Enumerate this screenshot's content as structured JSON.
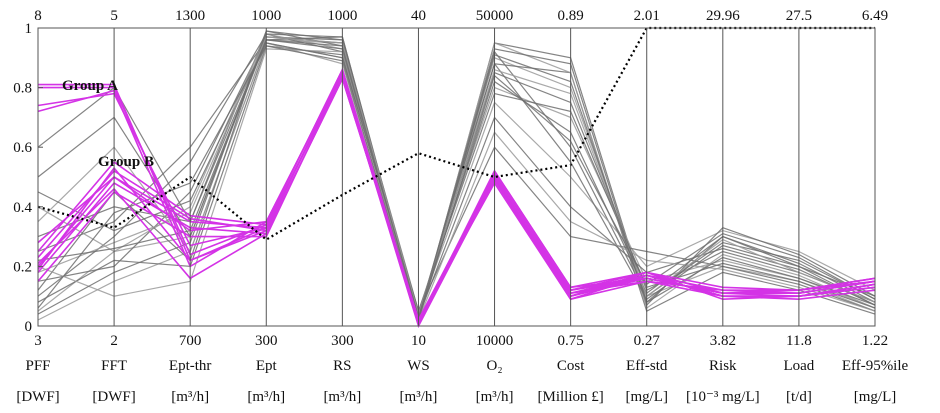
{
  "chart_data": {
    "type": "parallel-coordinates",
    "title": "",
    "y_tick_labels": [
      "0",
      "0.2",
      "0.4",
      "0.6",
      "0.8",
      "1"
    ],
    "ylim": [
      0,
      1
    ],
    "grid": false,
    "axes": [
      {
        "name": "PFF",
        "unit": "[DWF]",
        "min": "3",
        "max": "8"
      },
      {
        "name": "FFT",
        "unit": "[DWF]",
        "min": "2",
        "max": "5"
      },
      {
        "name": "Ept-thr",
        "unit": "[m³/h]",
        "min": "700",
        "max": "1300"
      },
      {
        "name": "Ept",
        "unit": "[m³/h]",
        "min": "300",
        "max": "1000"
      },
      {
        "name": "RS",
        "unit": "[m³/h]",
        "min": "300",
        "max": "1000"
      },
      {
        "name": "WS",
        "unit": "[m³/h]",
        "min": "10",
        "max": "40"
      },
      {
        "name": "O₂",
        "unit": "[m³/h]",
        "min": "10000",
        "max": "50000"
      },
      {
        "name": "Cost",
        "unit": "[Million £]",
        "min": "0.75",
        "max": "0.89"
      },
      {
        "name": "Eff-std",
        "unit": "[mg/L]",
        "min": "0.27",
        "max": "2.01"
      },
      {
        "name": "Risk",
        "unit": "[10⁻³ mg/L]",
        "min": "3.82",
        "max": "29.96"
      },
      {
        "name": "Load",
        "unit": "[t/d]",
        "min": "11.8",
        "max": "27.5"
      },
      {
        "name": "Eff-95%ile",
        "unit": "[mg/L]",
        "min": "1.22",
        "max": "6.49"
      }
    ],
    "annotations": [
      "Group A",
      "Group B"
    ],
    "colors": {
      "population": "#6f6f6f",
      "population_light": "#9a9a9a",
      "group": "#d433e6",
      "reference": "#000000",
      "axis": "#555555"
    },
    "series": [
      {
        "values": [
          0.4,
          0.33,
          0.5,
          0.29,
          0.44,
          0.58,
          0.5,
          0.54,
          1.0,
          1.0,
          1.0,
          1.0
        ]
      }
    ],
    "group_a": [
      [
        0.81,
        0.81,
        0.22,
        0.32,
        0.85,
        0.01,
        0.5,
        0.1,
        0.16,
        0.11,
        0.1,
        0.14
      ],
      [
        0.8,
        0.8,
        0.24,
        0.34,
        0.86,
        0.02,
        0.51,
        0.12,
        0.17,
        0.12,
        0.11,
        0.15
      ],
      [
        0.74,
        0.78,
        0.27,
        0.33,
        0.84,
        0.0,
        0.49,
        0.09,
        0.15,
        0.1,
        0.1,
        0.13
      ],
      [
        0.72,
        0.79,
        0.2,
        0.35,
        0.85,
        0.01,
        0.52,
        0.13,
        0.18,
        0.13,
        0.12,
        0.16
      ]
    ],
    "group_b": [
      [
        0.2,
        0.5,
        0.35,
        0.33,
        0.84,
        0.02,
        0.5,
        0.11,
        0.17,
        0.1,
        0.1,
        0.14
      ],
      [
        0.23,
        0.52,
        0.36,
        0.32,
        0.85,
        0.01,
        0.51,
        0.12,
        0.16,
        0.11,
        0.11,
        0.15
      ],
      [
        0.18,
        0.48,
        0.33,
        0.31,
        0.83,
        0.02,
        0.49,
        0.1,
        0.18,
        0.09,
        0.1,
        0.13
      ],
      [
        0.25,
        0.55,
        0.37,
        0.34,
        0.86,
        0.01,
        0.5,
        0.11,
        0.15,
        0.12,
        0.12,
        0.16
      ],
      [
        0.15,
        0.45,
        0.3,
        0.3,
        0.84,
        0.02,
        0.48,
        0.09,
        0.17,
        0.1,
        0.09,
        0.12
      ],
      [
        0.28,
        0.5,
        0.32,
        0.35,
        0.85,
        0.01,
        0.52,
        0.13,
        0.16,
        0.11,
        0.11,
        0.15
      ],
      [
        0.21,
        0.46,
        0.16,
        0.31,
        0.83,
        0.02,
        0.5,
        0.1,
        0.17,
        0.1,
        0.1,
        0.14
      ],
      [
        0.19,
        0.53,
        0.22,
        0.33,
        0.84,
        0.01,
        0.49,
        0.12,
        0.18,
        0.11,
        0.12,
        0.15
      ]
    ],
    "population": [
      [
        0.05,
        0.25,
        0.3,
        0.96,
        0.95,
        0.03,
        0.9,
        0.8,
        0.1,
        0.2,
        0.15,
        0.05
      ],
      [
        0.1,
        0.3,
        0.55,
        0.98,
        0.92,
        0.04,
        0.85,
        0.75,
        0.12,
        0.25,
        0.18,
        0.08
      ],
      [
        0.15,
        0.2,
        0.45,
        0.97,
        0.96,
        0.02,
        0.95,
        0.9,
        0.08,
        0.3,
        0.2,
        0.1
      ],
      [
        0.02,
        0.15,
        0.25,
        0.95,
        0.9,
        0.05,
        0.8,
        0.7,
        0.15,
        0.22,
        0.16,
        0.06
      ],
      [
        0.3,
        0.4,
        0.35,
        0.99,
        0.94,
        0.03,
        0.88,
        0.85,
        0.05,
        0.18,
        0.12,
        0.04
      ],
      [
        0.25,
        0.35,
        0.6,
        0.96,
        0.97,
        0.02,
        0.92,
        0.6,
        0.1,
        0.28,
        0.22,
        0.09
      ],
      [
        0.4,
        0.25,
        0.4,
        0.98,
        0.93,
        0.04,
        0.75,
        0.5,
        0.2,
        0.32,
        0.25,
        0.12
      ],
      [
        0.08,
        0.22,
        0.2,
        0.94,
        0.91,
        0.03,
        0.7,
        0.4,
        0.18,
        0.26,
        0.19,
        0.07
      ],
      [
        0.5,
        0.7,
        0.3,
        0.97,
        0.95,
        0.05,
        0.6,
        0.3,
        0.25,
        0.2,
        0.14,
        0.05
      ],
      [
        0.35,
        0.6,
        0.25,
        0.95,
        0.88,
        0.02,
        0.95,
        0.85,
        0.06,
        0.24,
        0.17,
        0.06
      ],
      [
        0.12,
        0.45,
        0.22,
        0.99,
        0.96,
        0.03,
        0.82,
        0.65,
        0.11,
        0.3,
        0.21,
        0.08
      ],
      [
        0.6,
        0.8,
        0.35,
        0.96,
        0.94,
        0.04,
        0.88,
        0.55,
        0.09,
        0.27,
        0.2,
        0.07
      ],
      [
        0.2,
        0.1,
        0.15,
        0.93,
        0.92,
        0.02,
        0.65,
        0.35,
        0.22,
        0.19,
        0.13,
        0.05
      ],
      [
        0.04,
        0.18,
        0.28,
        0.98,
        0.97,
        0.03,
        0.93,
        0.88,
        0.07,
        0.33,
        0.24,
        0.1
      ],
      [
        0.45,
        0.32,
        0.42,
        0.95,
        0.9,
        0.05,
        0.78,
        0.72,
        0.13,
        0.21,
        0.15,
        0.06
      ],
      [
        0.18,
        0.28,
        0.38,
        0.97,
        0.95,
        0.04,
        0.86,
        0.78,
        0.1,
        0.29,
        0.18,
        0.08
      ],
      [
        0.22,
        0.26,
        0.32,
        0.96,
        0.93,
        0.03,
        0.91,
        0.82,
        0.08,
        0.23,
        0.16,
        0.07
      ],
      [
        0.06,
        0.38,
        0.48,
        0.94,
        0.89,
        0.02,
        0.84,
        0.62,
        0.14,
        0.31,
        0.23,
        0.09
      ]
    ]
  }
}
